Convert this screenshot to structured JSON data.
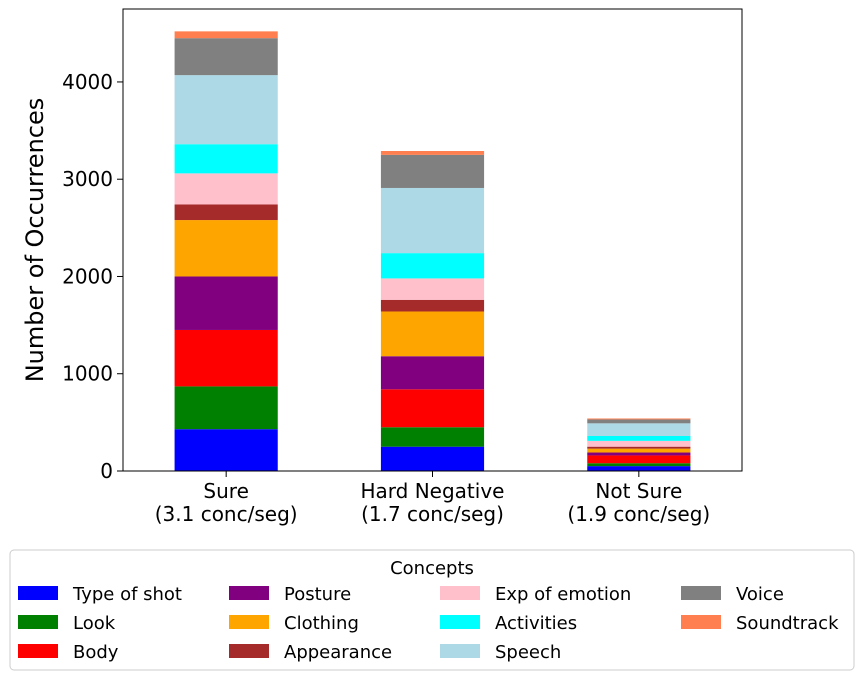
{
  "chart_data": {
    "type": "bar",
    "stacked": true,
    "title": "",
    "xlabel": "",
    "ylabel": "Number of Occurrences",
    "ylim": [
      0,
      4750
    ],
    "yticks": [
      "0",
      "1000",
      "2000",
      "3000",
      "4000"
    ],
    "categories": [
      {
        "name": "Sure",
        "sub": "(3.1 conc/seg)"
      },
      {
        "name": "Hard Negative",
        "sub": "(1.7 conc/seg)"
      },
      {
        "name": "Not Sure",
        "sub": "(1.9 conc/seg)"
      }
    ],
    "series": [
      {
        "name": "Type of shot",
        "color": "#0000ff",
        "values": [
          430,
          250,
          50
        ]
      },
      {
        "name": "Look",
        "color": "#008000",
        "values": [
          440,
          200,
          30
        ]
      },
      {
        "name": "Body",
        "color": "#ff0000",
        "values": [
          580,
          390,
          80
        ]
      },
      {
        "name": "Posture",
        "color": "#800080",
        "values": [
          550,
          340,
          30
        ]
      },
      {
        "name": "Clothing",
        "color": "#ffa500",
        "values": [
          580,
          460,
          40
        ]
      },
      {
        "name": "Appearance",
        "color": "#a52a2a",
        "values": [
          160,
          120,
          20
        ]
      },
      {
        "name": "Exp of emotion",
        "color": "#ffc0cb",
        "values": [
          320,
          220,
          60
        ]
      },
      {
        "name": "Activities",
        "color": "#00ffff",
        "values": [
          300,
          260,
          50
        ]
      },
      {
        "name": "Speech",
        "color": "#add8e6",
        "values": [
          710,
          670,
          130
        ]
      },
      {
        "name": "Voice",
        "color": "#808080",
        "values": [
          380,
          340,
          40
        ]
      },
      {
        "name": "Soundtrack",
        "color": "#ff7f50",
        "values": [
          70,
          40,
          10
        ]
      }
    ],
    "legend": {
      "title": "Concepts",
      "placement": "bottom-center",
      "columns": 4
    }
  }
}
